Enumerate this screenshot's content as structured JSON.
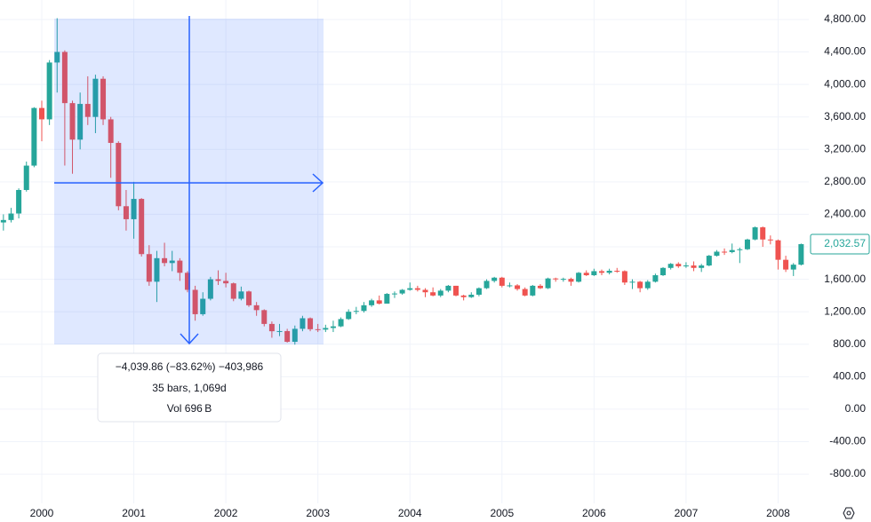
{
  "chart_data": {
    "type": "candlestick",
    "categories": [
      null,
      null,
      null,
      null,
      null,
      "2000",
      null,
      null,
      null,
      null,
      null,
      null,
      null,
      null,
      null,
      null,
      null,
      "2001",
      null,
      null,
      null,
      null,
      null,
      null,
      null,
      null,
      null,
      null,
      null,
      "2002",
      null,
      null,
      null,
      null,
      null,
      null,
      null,
      null,
      null,
      null,
      null,
      "2003",
      null,
      null,
      null,
      null,
      null,
      null,
      null,
      null,
      null,
      null,
      null,
      "2004",
      null,
      null,
      null,
      null,
      null,
      null,
      null,
      null,
      null,
      null,
      null,
      "2005",
      null,
      null,
      null,
      null,
      null,
      null,
      null,
      null,
      null,
      null,
      null,
      "2006",
      null,
      null,
      null,
      null,
      null,
      null,
      null,
      null,
      null,
      null,
      null,
      "2007",
      null,
      null,
      null,
      null,
      null,
      null,
      null,
      null,
      null,
      null,
      null,
      "2008",
      null,
      null,
      null
    ],
    "open": [
      2300,
      2330,
      2410,
      2700,
      3000,
      3710,
      3570,
      4270,
      4400,
      3770,
      3320,
      3760,
      3600,
      4070,
      3570,
      3280,
      2500,
      2340,
      2590,
      1910,
      1570,
      1860,
      1800,
      1830,
      1680,
      1470,
      1170,
      1360,
      1600,
      1580,
      1550,
      1360,
      1450,
      1280,
      1220,
      1050,
      960,
      962,
      830,
      990,
      1120,
      985,
      980,
      1000,
      1020,
      1110,
      1200,
      1210,
      1280,
      1340,
      1300,
      1420,
      1425,
      1470,
      1490,
      1470,
      1440,
      1400,
      1460,
      1520,
      1400,
      1380,
      1410,
      1490,
      1580,
      1620,
      1520,
      1525,
      1480,
      1400,
      1520,
      1490,
      1610,
      1600,
      1605,
      1570,
      1680,
      1650,
      1700,
      1680,
      1705,
      1700,
      1560,
      1570,
      1490,
      1570,
      1650,
      1740,
      1790,
      1760,
      1770,
      1740,
      1770,
      1890,
      1940,
      1935,
      1960,
      1970,
      2090,
      2240,
      2090,
      2080,
      1840,
      1720,
      1780
    ],
    "high": [
      2400,
      2480,
      2720,
      3050,
      3720,
      3800,
      4300,
      4816,
      4420,
      3800,
      3900,
      4100,
      4120,
      4100,
      3600,
      3300,
      2700,
      2800,
      2600,
      2020,
      1950,
      2050,
      1950,
      1860,
      1700,
      1520,
      1440,
      1630,
      1710,
      1680,
      1560,
      1510,
      1460,
      1320,
      1230,
      1080,
      1050,
      990,
      1030,
      1150,
      1130,
      1050,
      1040,
      1090,
      1130,
      1230,
      1260,
      1320,
      1360,
      1400,
      1430,
      1450,
      1480,
      1560,
      1520,
      1490,
      1500,
      1480,
      1530,
      1520,
      1410,
      1440,
      1500,
      1600,
      1630,
      1630,
      1560,
      1540,
      1500,
      1530,
      1540,
      1620,
      1620,
      1620,
      1620,
      1690,
      1710,
      1730,
      1720,
      1730,
      1740,
      1710,
      1600,
      1580,
      1590,
      1670,
      1750,
      1800,
      1810,
      1810,
      1820,
      1790,
      1900,
      1960,
      1980,
      2040,
      1990,
      2100,
      2250,
      2250,
      2140,
      2090,
      1890,
      1800,
      2040
    ],
    "low": [
      2200,
      2300,
      2350,
      2680,
      2980,
      3300,
      3500,
      3900,
      3000,
      2900,
      3200,
      3500,
      3400,
      3500,
      2850,
      2450,
      2200,
      2100,
      1880,
      1520,
      1320,
      1760,
      1700,
      1580,
      1440,
      1090,
      1150,
      1340,
      1530,
      1500,
      1330,
      1340,
      1260,
      1150,
      1020,
      880,
      900,
      820,
      795,
      960,
      960,
      950,
      950,
      950,
      1010,
      1100,
      1170,
      1190,
      1260,
      1290,
      1300,
      1370,
      1410,
      1460,
      1450,
      1380,
      1390,
      1380,
      1440,
      1390,
      1340,
      1370,
      1390,
      1480,
      1560,
      1500,
      1500,
      1460,
      1390,
      1390,
      1480,
      1480,
      1570,
      1570,
      1520,
      1560,
      1640,
      1640,
      1650,
      1660,
      1680,
      1530,
      1480,
      1440,
      1470,
      1560,
      1640,
      1720,
      1740,
      1740,
      1700,
      1690,
      1760,
      1880,
      1900,
      1920,
      1800,
      1960,
      2080,
      2000,
      2030,
      1720,
      1690,
      1640,
      1770
    ],
    "close": [
      2330,
      2410,
      2700,
      3000,
      3710,
      3570,
      4270,
      4400,
      3770,
      3320,
      3760,
      3600,
      4070,
      3570,
      3280,
      2500,
      2340,
      2590,
      1910,
      1570,
      1860,
      1800,
      1830,
      1680,
      1470,
      1170,
      1360,
      1600,
      1580,
      1550,
      1360,
      1450,
      1280,
      1220,
      1050,
      960,
      962,
      830,
      990,
      1120,
      985,
      980,
      1000,
      1020,
      1110,
      1200,
      1210,
      1280,
      1340,
      1300,
      1420,
      1425,
      1470,
      1490,
      1470,
      1440,
      1400,
      1460,
      1520,
      1400,
      1380,
      1410,
      1490,
      1580,
      1620,
      1520,
      1525,
      1480,
      1400,
      1520,
      1490,
      1610,
      1600,
      1605,
      1570,
      1680,
      1650,
      1700,
      1680,
      1705,
      1700,
      1560,
      1570,
      1490,
      1570,
      1650,
      1740,
      1790,
      1760,
      1770,
      1740,
      1770,
      1890,
      1940,
      1935,
      1960,
      1970,
      2090,
      2240,
      2090,
      2080,
      1840,
      1720,
      1780,
      2032.57
    ],
    "up_color": "#26a69a",
    "down_color": "#ef5350",
    "price_label": "2,032.57",
    "ylim": [
      -1160,
      5040
    ],
    "yticks": [
      {
        "value": 4800,
        "label": "4,800.00"
      },
      {
        "value": 4400,
        "label": "4,400.00"
      },
      {
        "value": 4000,
        "label": "4,000.00"
      },
      {
        "value": 3600,
        "label": "3,600.00"
      },
      {
        "value": 3200,
        "label": "3,200.00"
      },
      {
        "value": 2800,
        "label": "2,800.00"
      },
      {
        "value": 2400,
        "label": "2,400.00"
      },
      {
        "value": 2000,
        "label": "2,000.00"
      },
      {
        "value": 1600,
        "label": "1,600.00"
      },
      {
        "value": 1200,
        "label": "1,200.00"
      },
      {
        "value": 800,
        "label": "800.00"
      },
      {
        "value": 400,
        "label": "400.00"
      },
      {
        "value": 0,
        "label": "0.00"
      },
      {
        "value": -400,
        "label": "-400.00"
      },
      {
        "value": -800,
        "label": "-800.00"
      }
    ],
    "grid": true,
    "measure": {
      "lines": [
        "−4,039.86 (−83.62%) −403,986",
        "35 bars, 1,069d",
        "Vol 696 B"
      ]
    }
  }
}
